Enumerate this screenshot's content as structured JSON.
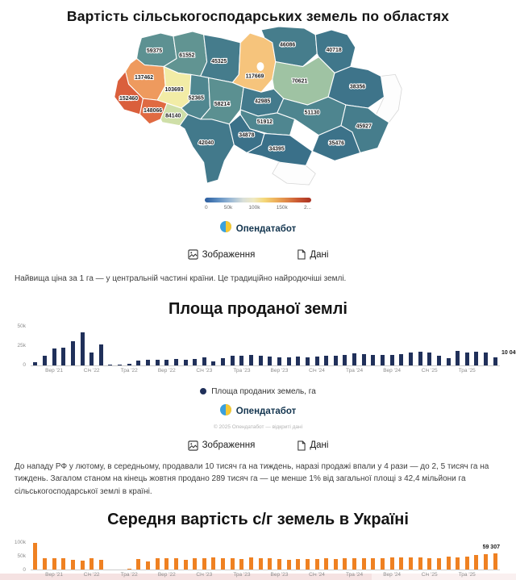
{
  "page": {
    "map_title": "Вартість сільськогосподарських земель по областях",
    "caption_map": "Найвища ціна за 1 га — у центральній частині країни. Це традиційно найродючіші землі.",
    "chart1_title": "Площа проданої землі",
    "chart1_legend": "Площа проданих земель, га",
    "copyright": "© 2025 Опендатабот — відкриті дані",
    "caption_chart1": "До нападу РФ у лютому, в середньому, продавали 10 тисяч га на тиждень, наразі продажі впали у 4 рази — до 2, 5 тисяч га на тиждень. Загалом станом на кінець жовтня продано 289 тисяч га — це менше 1% від загальної площі з 42,4 мільйони га сільськогосподарської землі в країні.",
    "chart2_title": "Середня вартість с/г земель в Україні",
    "logo_label": "Опендатабот",
    "image_button": "Зображення",
    "data_button": "Дані"
  },
  "chart_data": [
    {
      "type": "choropleth",
      "title": "Вартість сільськогосподарських земель по областях",
      "legend_ticks": [
        "0",
        "50k",
        "100k",
        "150k",
        "2..."
      ],
      "regions": [
        {
          "id": "volyn",
          "value": 59375,
          "color": "#5d9192"
        },
        {
          "id": "rivne",
          "value": 61552,
          "color": "#619492"
        },
        {
          "id": "zhytomyr",
          "value": 45325,
          "color": "#457c8c"
        },
        {
          "id": "kyiv",
          "value": 117669,
          "color": "#f6c47c"
        },
        {
          "id": "chernihiv",
          "value": 46086,
          "color": "#467d8c"
        },
        {
          "id": "sumy",
          "value": 40718,
          "color": "#40778b"
        },
        {
          "id": "lviv",
          "value": 137462,
          "color": "#ee9a5e"
        },
        {
          "id": "ternopil",
          "value": 103693,
          "color": "#f2eca6"
        },
        {
          "id": "khmelnytskyi",
          "value": 52365,
          "color": "#508790"
        },
        {
          "id": "vinnytsia",
          "value": 58214,
          "color": "#5b9091"
        },
        {
          "id": "cherkasy",
          "value": 42985,
          "color": "#437a8c"
        },
        {
          "id": "poltava",
          "value": 70621,
          "color": "#9fc3a3"
        },
        {
          "id": "kharkiv",
          "value": 38356,
          "color": "#3e748a"
        },
        {
          "id": "zakarpattia",
          "value": 152460,
          "color": "#da5f3c"
        },
        {
          "id": "ivano_frankivsk",
          "value": 148066,
          "color": "#e06a42"
        },
        {
          "id": "chernivtsi",
          "value": 84140,
          "color": "#cfdfa8"
        },
        {
          "id": "odesa",
          "value": 42040,
          "color": "#42798b"
        },
        {
          "id": "mykolaiv",
          "value": 34878,
          "color": "#3b7189"
        },
        {
          "id": "kirovohrad",
          "value": 51912,
          "color": "#4f8690"
        },
        {
          "id": "dnipro",
          "value": 51130,
          "color": "#4e858f"
        },
        {
          "id": "donetsk",
          "value": 45927,
          "color": "#467d8c"
        },
        {
          "id": "zaporizhzhia",
          "value": 35476,
          "color": "#3c7289"
        },
        {
          "id": "kherson",
          "value": 34395,
          "color": "#3a7089"
        }
      ],
      "no_data_regions": [
        "luhansk",
        "crimea"
      ]
    },
    {
      "type": "bar",
      "title": "Площа проданої землі",
      "series_name": "Площа проданих земель, га",
      "color": "#20305a",
      "ylim": [
        0,
        50000
      ],
      "yticks": [
        {
          "v": 0,
          "label": "0"
        },
        {
          "v": 25000,
          "label": "25k"
        },
        {
          "v": 50000,
          "label": "50k"
        }
      ],
      "values": [
        3500,
        12000,
        21000,
        22000,
        31000,
        42000,
        16000,
        27000,
        500,
        700,
        1500,
        6000,
        7000,
        6500,
        7000,
        8000,
        7000,
        8000,
        10000,
        5000,
        9000,
        12000,
        12000,
        13000,
        12000,
        11000,
        10000,
        9500,
        11000,
        10000,
        11000,
        12000,
        12000,
        13000,
        15000,
        14000,
        13000,
        13000,
        13000,
        14000,
        16000,
        17000,
        16000,
        12000,
        9000,
        18000,
        16000,
        17000,
        16000,
        10049
      ],
      "xticks": [
        {
          "i": 2,
          "label": "Вер '21"
        },
        {
          "i": 6,
          "label": "Січ '22"
        },
        {
          "i": 10,
          "label": "Тра '22"
        },
        {
          "i": 14,
          "label": "Вер '22"
        },
        {
          "i": 18,
          "label": "Січ '23"
        },
        {
          "i": 22,
          "label": "Тра '23"
        },
        {
          "i": 26,
          "label": "Вер '23"
        },
        {
          "i": 30,
          "label": "Січ '24"
        },
        {
          "i": 34,
          "label": "Тра '24"
        },
        {
          "i": 38,
          "label": "Вер '24"
        },
        {
          "i": 42,
          "label": "Січ '25"
        },
        {
          "i": 46,
          "label": "Тра '25"
        }
      ],
      "last_value_label": "10 049"
    },
    {
      "type": "bar",
      "title": "Середня вартість с/г земель в Україні",
      "color": "#ef8122",
      "ylim": [
        0,
        100000
      ],
      "yticks": [
        {
          "v": 0,
          "label": "0"
        },
        {
          "v": 50000,
          "label": "50k"
        },
        {
          "v": 100000,
          "label": "100k"
        }
      ],
      "values": [
        96000,
        40000,
        42000,
        40000,
        35000,
        33000,
        40000,
        35000,
        0,
        0,
        2000,
        38000,
        30000,
        42000,
        42000,
        42000,
        35000,
        40000,
        42000,
        45000,
        42000,
        40000,
        38000,
        45000,
        42000,
        40000,
        38000,
        36000,
        38000,
        37000,
        39000,
        40000,
        38000,
        40000,
        42000,
        41000,
        40000,
        42000,
        44000,
        43000,
        45000,
        44000,
        42000,
        40000,
        46000,
        44000,
        48000,
        52000,
        57000,
        59307
      ],
      "xticks": [
        {
          "i": 2,
          "label": "Вер '21"
        },
        {
          "i": 6,
          "label": "Січ '22"
        },
        {
          "i": 10,
          "label": "Тра '22"
        },
        {
          "i": 14,
          "label": "Вер '22"
        },
        {
          "i": 18,
          "label": "Січ '23"
        },
        {
          "i": 22,
          "label": "Тра '23"
        },
        {
          "i": 26,
          "label": "Вер '23"
        },
        {
          "i": 30,
          "label": "Січ '24"
        },
        {
          "i": 34,
          "label": "Тра '24"
        },
        {
          "i": 38,
          "label": "Вер '24"
        },
        {
          "i": 42,
          "label": "Січ '25"
        },
        {
          "i": 46,
          "label": "Тра '25"
        }
      ],
      "last_value_label": "59 307"
    }
  ]
}
